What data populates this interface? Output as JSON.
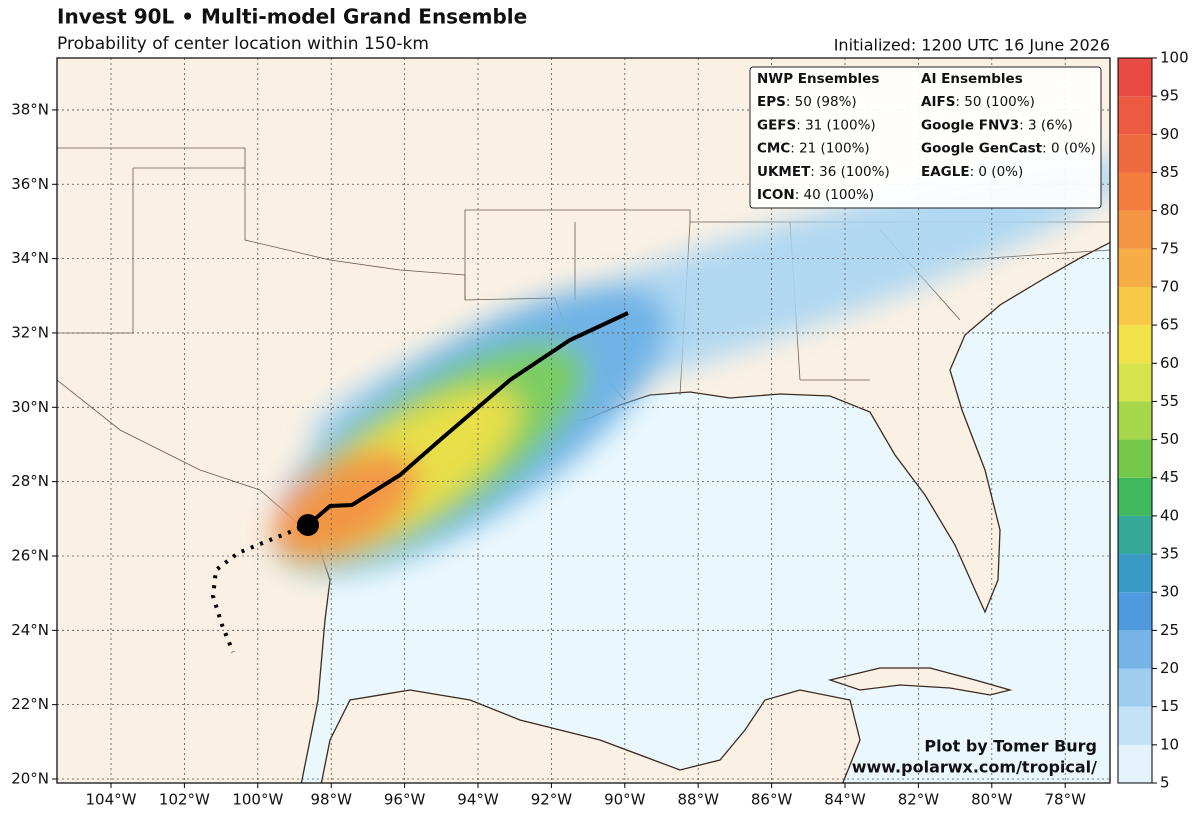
{
  "header": {
    "title": "Invest 90L • Multi-model Grand Ensemble",
    "subtitle": "Probability of center location within 150-km",
    "initialized": "Initialized: 1200 UTC 16 June 2026"
  },
  "map": {
    "lon_ticks": [
      {
        "value": -104,
        "label": "104°W"
      },
      {
        "value": -102,
        "label": "102°W"
      },
      {
        "value": -100,
        "label": "100°W"
      },
      {
        "value": -98,
        "label": "98°W"
      },
      {
        "value": -96,
        "label": "96°W"
      },
      {
        "value": -94,
        "label": "94°W"
      },
      {
        "value": -92,
        "label": "92°W"
      },
      {
        "value": -90,
        "label": "90°W"
      },
      {
        "value": -88,
        "label": "88°W"
      },
      {
        "value": -86,
        "label": "86°W"
      },
      {
        "value": -84,
        "label": "84°W"
      },
      {
        "value": -82,
        "label": "82°W"
      },
      {
        "value": -80,
        "label": "80°W"
      },
      {
        "value": -78,
        "label": "78°W"
      }
    ],
    "lat_ticks": [
      {
        "value": 20,
        "label": "20°N"
      },
      {
        "value": 22,
        "label": "22°N"
      },
      {
        "value": 24,
        "label": "24°N"
      },
      {
        "value": 26,
        "label": "26°N"
      },
      {
        "value": 28,
        "label": "28°N"
      },
      {
        "value": 30,
        "label": "30°N"
      },
      {
        "value": 32,
        "label": "32°N"
      },
      {
        "value": 34,
        "label": "34°N"
      },
      {
        "value": 36,
        "label": "36°N"
      },
      {
        "value": 38,
        "label": "38°N"
      }
    ]
  },
  "legend": {
    "nwp": {
      "heading": "NWP Ensembles",
      "entries": [
        {
          "name": "EPS",
          "detail": ": 50 (98%)"
        },
        {
          "name": "GEFS",
          "detail": ": 31 (100%)"
        },
        {
          "name": "CMC",
          "detail": ": 21 (100%)"
        },
        {
          "name": "UKMET",
          "detail": ": 36 (100%)"
        },
        {
          "name": "ICON",
          "detail": ": 40 (100%)"
        }
      ]
    },
    "ai": {
      "heading": "AI Ensembles",
      "entries": [
        {
          "name": "AIFS",
          "detail": ": 50 (100%)"
        },
        {
          "name": "Google FNV3",
          "detail": ": 3 (6%)"
        },
        {
          "name": "Google GenCast",
          "detail": ": 0 (0%)"
        },
        {
          "name": "EAGLE",
          "detail": ": 0 (0%)"
        }
      ]
    }
  },
  "colorbar": {
    "range": [
      5,
      100
    ],
    "ticks": [
      5,
      10,
      15,
      20,
      25,
      30,
      35,
      40,
      45,
      50,
      55,
      60,
      65,
      70,
      75,
      80,
      85,
      90,
      95,
      100
    ],
    "colors": [
      "#e3f2fb",
      "#c3e2f6",
      "#9fcdf0",
      "#76b4e8",
      "#4f9ade",
      "#3a9ac6",
      "#36a89a",
      "#3fb95c",
      "#74c94b",
      "#a6d64a",
      "#d6e34b",
      "#f2e24a",
      "#f7c846",
      "#f7ad45",
      "#f59442",
      "#f27d3f",
      "#ef6a3f",
      "#ec5a42",
      "#e94a44"
    ]
  },
  "credit": {
    "line1": "Plot by Tomer Burg",
    "line2": "www.polarwx.com/tropical/"
  }
}
